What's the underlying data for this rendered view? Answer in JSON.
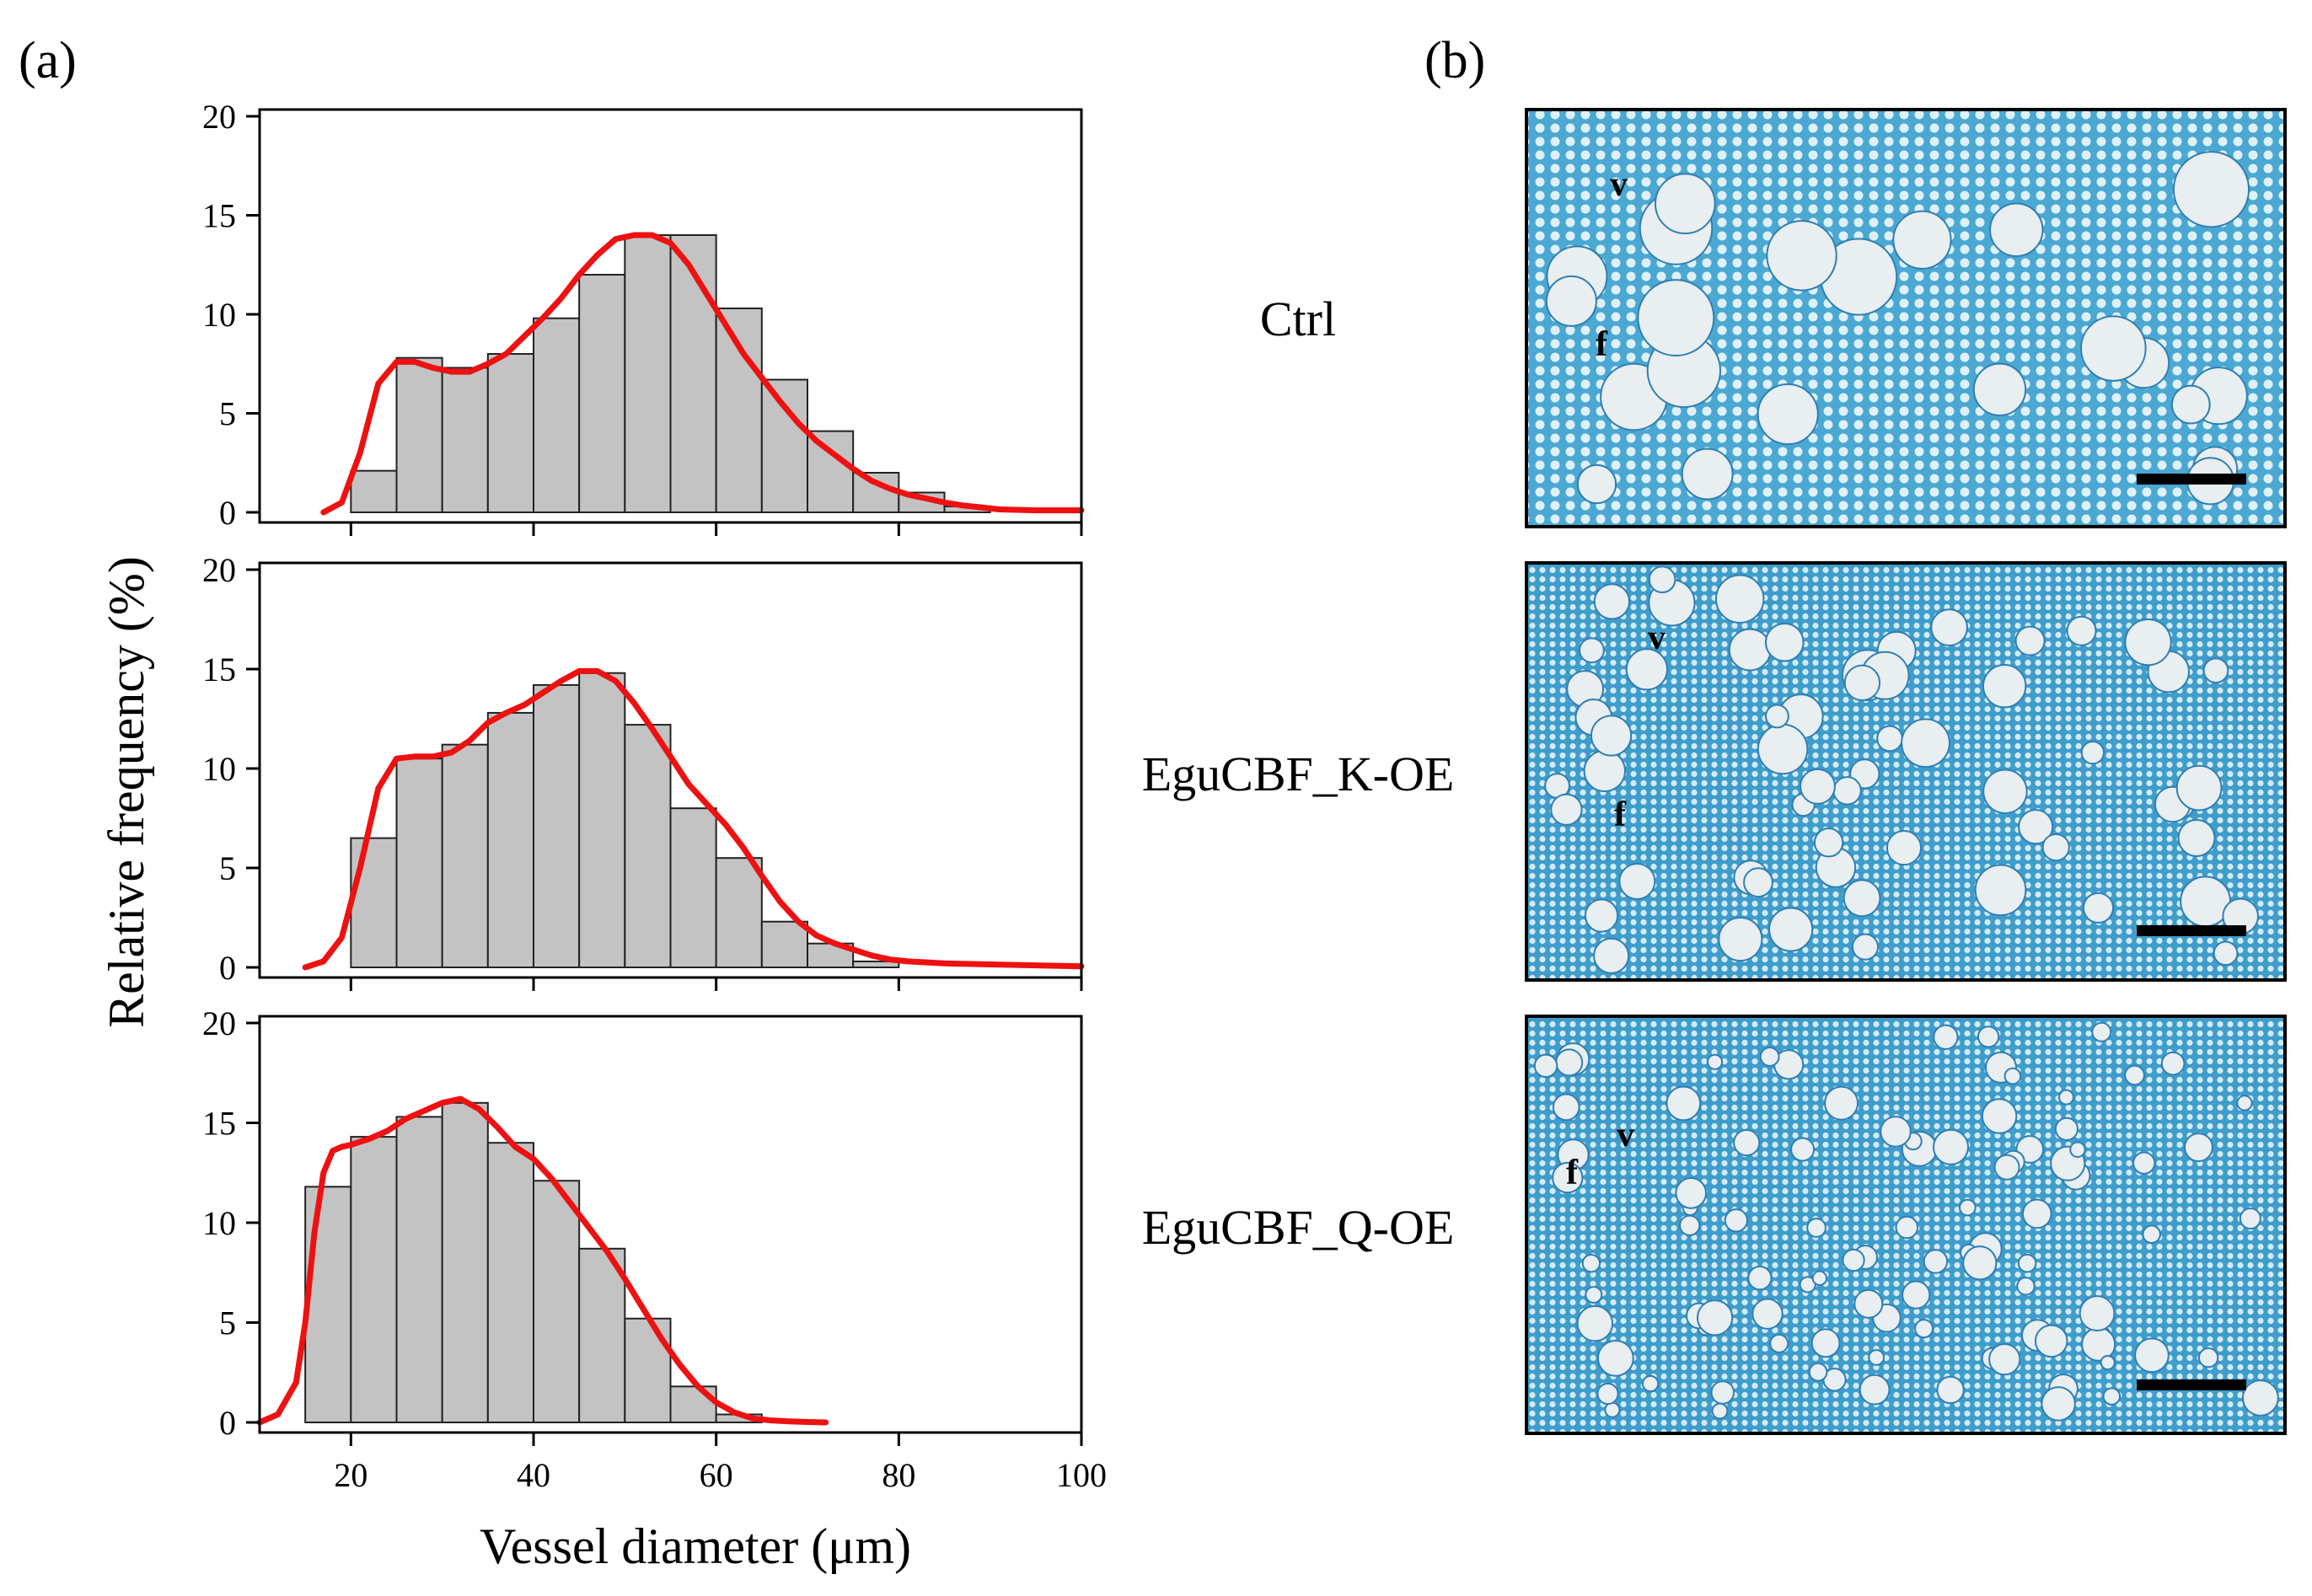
{
  "panel_a_label": "(a)",
  "panel_b_label": "(b)",
  "colors": {
    "bar_fill": "#c3c3c3",
    "bar_stroke": "#222222",
    "density_line": "#ee1111",
    "tissue_blue": "#3fa3cf",
    "tissue_dark": "#2f7fb4",
    "vessel_fill": "#e9eef0"
  },
  "chart_data": [
    {
      "type": "bar",
      "series_name": "Ctrl",
      "bin_edges": [
        20,
        25,
        30,
        35,
        40,
        45,
        50,
        55,
        60,
        65,
        70,
        75,
        80,
        85,
        90
      ],
      "values": [
        2.1,
        7.8,
        7.3,
        8.0,
        9.8,
        12.0,
        14.0,
        14.0,
        10.3,
        6.7,
        4.1,
        2.0,
        1.0,
        0.3
      ],
      "density_curve": {
        "x": [
          17,
          19,
          21,
          23,
          25,
          27,
          29,
          31,
          33,
          35,
          37,
          39,
          41,
          43,
          45,
          47,
          49,
          51,
          53,
          55,
          57,
          59,
          61,
          63,
          65,
          67,
          69,
          71,
          73,
          75,
          77,
          79,
          81,
          83,
          85,
          87,
          89,
          91,
          95,
          100
        ],
        "y": [
          0,
          0.5,
          3.0,
          6.5,
          7.6,
          7.6,
          7.3,
          7.1,
          7.1,
          7.5,
          8.0,
          8.9,
          9.8,
          10.8,
          12.0,
          13.0,
          13.8,
          14.0,
          14.0,
          13.6,
          12.5,
          11.0,
          9.5,
          8.0,
          6.8,
          5.6,
          4.5,
          3.6,
          2.9,
          2.2,
          1.6,
          1.2,
          0.9,
          0.7,
          0.5,
          0.35,
          0.25,
          0.15,
          0.1,
          0.1
        ]
      },
      "xlim": [
        10,
        100
      ],
      "ylim": [
        0,
        20
      ],
      "yticks": [
        "0",
        "5",
        "10",
        "15",
        "20"
      ]
    },
    {
      "type": "bar",
      "series_name": "EguCBF_K-OE",
      "bin_edges": [
        20,
        25,
        30,
        35,
        40,
        45,
        50,
        55,
        60,
        65,
        70,
        75,
        80
      ],
      "values": [
        6.5,
        10.5,
        11.2,
        12.8,
        14.2,
        14.8,
        12.2,
        8.0,
        5.5,
        2.3,
        1.2,
        0.3
      ],
      "density_curve": {
        "x": [
          15,
          17,
          19,
          21,
          23,
          25,
          27,
          29,
          31,
          33,
          35,
          37,
          39,
          41,
          43,
          45,
          47,
          49,
          51,
          53,
          55,
          57,
          59,
          61,
          63,
          65,
          67,
          69,
          71,
          73,
          75,
          77,
          79,
          81,
          85,
          90,
          95,
          100
        ],
        "y": [
          0,
          0.3,
          1.5,
          5.0,
          9.0,
          10.5,
          10.6,
          10.6,
          10.8,
          11.4,
          12.3,
          12.8,
          13.2,
          13.8,
          14.4,
          14.9,
          14.9,
          14.4,
          13.3,
          12.0,
          10.6,
          9.2,
          8.2,
          7.2,
          6.0,
          4.6,
          3.3,
          2.3,
          1.6,
          1.2,
          0.9,
          0.6,
          0.4,
          0.3,
          0.2,
          0.15,
          0.1,
          0.05
        ]
      },
      "xlim": [
        10,
        100
      ],
      "ylim": [
        0,
        20
      ],
      "yticks": [
        "0",
        "5",
        "10",
        "15",
        "20"
      ]
    },
    {
      "type": "bar",
      "series_name": "EguCBF_Q-OE",
      "bin_edges": [
        15,
        20,
        25,
        30,
        35,
        40,
        45,
        50,
        55,
        60,
        65
      ],
      "values": [
        11.8,
        14.3,
        15.3,
        16.0,
        14.0,
        12.1,
        8.7,
        5.2,
        1.8,
        0.4
      ],
      "density_curve": {
        "x": [
          10,
          12,
          14,
          15,
          16,
          17,
          18,
          19,
          20,
          22,
          24,
          26,
          28,
          30,
          32,
          34,
          36,
          38,
          40,
          42,
          44,
          46,
          48,
          50,
          52,
          54,
          56,
          58,
          60,
          62,
          64,
          66,
          68,
          70,
          72
        ],
        "y": [
          0,
          0.4,
          2.0,
          5.0,
          9.5,
          12.5,
          13.6,
          13.8,
          13.9,
          14.2,
          14.6,
          15.2,
          15.6,
          16.0,
          16.2,
          15.7,
          14.8,
          13.8,
          13.2,
          12.2,
          11.0,
          9.8,
          8.6,
          7.2,
          5.7,
          4.2,
          2.9,
          1.8,
          1.0,
          0.5,
          0.2,
          0.1,
          0.05,
          0.02,
          0
        ]
      },
      "xlim": [
        10,
        100
      ],
      "ylim": [
        0,
        20
      ],
      "yticks": [
        "0",
        "5",
        "10",
        "15",
        "20"
      ]
    }
  ],
  "xticks": [
    "20",
    "40",
    "60",
    "80",
    "100"
  ],
  "xlabel": "Vessel diameter (μm)",
  "ylabel": "Relative frequency (%)",
  "micrographs": [
    {
      "group": "Ctrl",
      "v": "v",
      "f": "f"
    },
    {
      "group": "EguCBF_K-OE",
      "v": "v",
      "f": "f"
    },
    {
      "group": "EguCBF_Q-OE",
      "v": "v",
      "f": "f"
    }
  ]
}
